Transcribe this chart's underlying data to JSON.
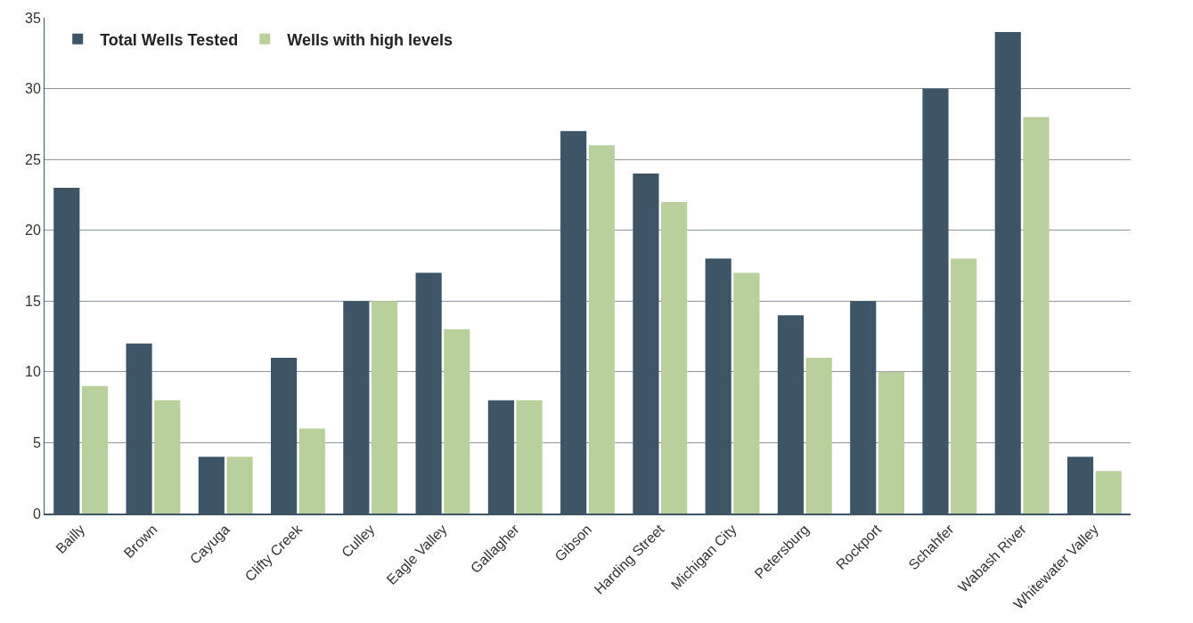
{
  "chart_data": {
    "type": "bar",
    "categories": [
      "Bailly",
      "Brown",
      "Cayuga",
      "Clifty Creek",
      "Culley",
      "Eagle Valley",
      "Gallagher",
      "Gibson",
      "Harding Street",
      "Michigan City",
      "Petersburg",
      "Rockport",
      "Schahfer",
      "Wabash River",
      "Whitewater Valley"
    ],
    "series": [
      {
        "name": "Total Wells Tested",
        "color": "#3d5566",
        "values": [
          23,
          12,
          4,
          11,
          15,
          17,
          8,
          27,
          24,
          18,
          14,
          15,
          30,
          34,
          4
        ]
      },
      {
        "name": "Wells with high levels",
        "color": "#b9d09d",
        "values": [
          9,
          8,
          4,
          6,
          15,
          13,
          8,
          26,
          22,
          17,
          11,
          10,
          18,
          28,
          3
        ]
      }
    ],
    "ylim": [
      0,
      35
    ],
    "yticks": [
      0,
      5,
      10,
      15,
      20,
      25,
      30,
      35
    ],
    "grid": "y",
    "legend": "top left"
  }
}
